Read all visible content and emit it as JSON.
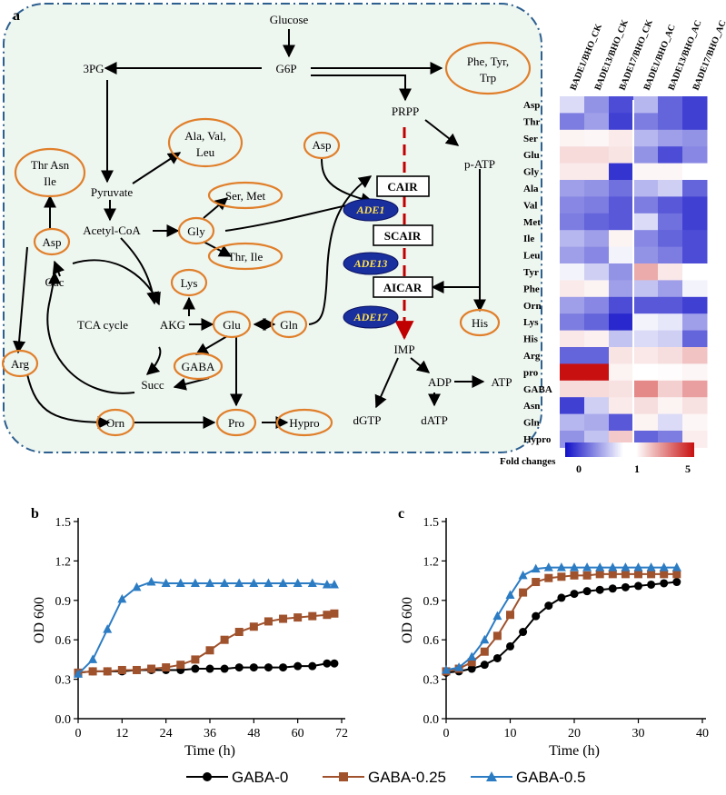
{
  "panels": {
    "a": "a",
    "b": "b",
    "c": "c"
  },
  "pathway": {
    "nodes": {
      "glucose": "Glucose",
      "g6p": "G6P",
      "pg3": "3PG",
      "phe_tyr_trp_1": "Phe, Tyr,",
      "phe_tyr_trp_2": "Trp",
      "prpp": "PRPP",
      "ala_val_leu_1": "Ala, Val,",
      "ala_val_leu_2": "Leu",
      "thr_asn_ile_1": "Thr Asn",
      "thr_asn_ile_2": "Ile",
      "pyruvate": "Pyruvate",
      "ser_met": "Ser, Met",
      "asp_top": "Asp",
      "p_atp": "p-ATP",
      "cair": "CAIR",
      "acetyl_coa": "Acetyl-CoA",
      "gly": "Gly",
      "thr_ile": "Thr, Ile",
      "ade1": "ADE1",
      "scair": "SCAIR",
      "asp_left": "Asp",
      "ade13": "ADE13",
      "lys": "Lys",
      "oac": "Oac",
      "aicar": "AICAR",
      "tca": "TCA cycle",
      "akg": "AKG",
      "glu": "Glu",
      "gln": "Gln",
      "ade17": "ADE17",
      "his": "His",
      "imp": "IMP",
      "arg": "Arg",
      "gaba": "GABA",
      "succ": "Succ",
      "adp": "ADP",
      "atp": "ATP",
      "orn": "Orn",
      "pro": "Pro",
      "hypro": "Hypro",
      "dgtp": "dGTP",
      "datp": "dATP"
    }
  },
  "heatmap": {
    "columns": [
      "BADE1/BHO_CK",
      "BADE13/BHO_CK",
      "BADE17/BHO_CK",
      "BADE1/BHO_AC",
      "BADE13/BHO_AC",
      "BADE17/BHO_AC"
    ],
    "rows": [
      "Asp",
      "Thr",
      "Ser",
      "Glu",
      "Gly",
      "Ala",
      "Val",
      "Met",
      "Ile",
      "Leu",
      "Tyr",
      "Phe",
      "Orn",
      "Lys",
      "His",
      "Arg",
      "pro",
      "GABA",
      "Asn",
      "Gln",
      "Hypro"
    ],
    "values": [
      [
        0.85,
        0.55,
        0.25,
        0.7,
        0.35,
        0.2
      ],
      [
        0.45,
        0.6,
        0.2,
        0.45,
        0.35,
        0.2
      ],
      [
        1.2,
        1.15,
        1.35,
        0.7,
        0.6,
        0.55
      ],
      [
        1.6,
        1.6,
        1.45,
        0.55,
        0.25,
        0.5
      ],
      [
        1.35,
        1.35,
        0.15,
        1.15,
        1.15,
        1.0
      ],
      [
        0.6,
        0.55,
        0.4,
        0.7,
        0.8,
        0.35
      ],
      [
        0.5,
        0.45,
        0.3,
        0.45,
        0.3,
        0.2
      ],
      [
        0.45,
        0.35,
        0.3,
        0.85,
        0.4,
        0.2
      ],
      [
        0.7,
        0.6,
        1.2,
        0.5,
        0.35,
        0.25
      ],
      [
        0.6,
        0.5,
        0.95,
        0.55,
        0.45,
        0.25
      ],
      [
        0.95,
        0.8,
        0.55,
        2.4,
        1.4,
        1.0
      ],
      [
        1.35,
        1.2,
        0.6,
        0.75,
        0.6,
        0.95
      ],
      [
        0.6,
        0.5,
        0.25,
        0.3,
        0.3,
        0.2
      ],
      [
        0.45,
        0.35,
        0.1,
        0.95,
        0.9,
        0.6
      ],
      [
        1.4,
        1.25,
        0.75,
        0.85,
        0.8,
        0.35
      ],
      [
        0.35,
        0.35,
        1.45,
        1.4,
        1.55,
        2.0
      ],
      [
        5.0,
        5.0,
        1.2,
        1.0,
        1.05,
        1.15
      ],
      [
        1.6,
        1.6,
        1.5,
        3.0,
        1.8,
        2.6
      ],
      [
        0.2,
        0.8,
        1.35,
        1.55,
        1.2,
        1.5
      ],
      [
        0.7,
        0.65,
        0.3,
        1.2,
        0.85,
        1.15
      ],
      [
        0.55,
        0.75,
        1.9,
        0.35,
        0.45,
        1.3
      ]
    ],
    "scale": {
      "label": "Fold changes",
      "ticks": [
        "0",
        "1",
        "5"
      ],
      "low_color": "#1010c8",
      "mid_color": "#ffffff",
      "high_color": "#c81010"
    }
  },
  "chart_data": [
    {
      "panel": "b",
      "type": "line",
      "xlabel": "Time (h)",
      "ylabel": "OD 600",
      "xlim": [
        0,
        72
      ],
      "ylim": [
        0,
        1.5
      ],
      "xticks": [
        "0",
        "12",
        "24",
        "36",
        "48",
        "60",
        "72"
      ],
      "yticks": [
        "0.0",
        "0.3",
        "0.6",
        "0.9",
        "1.2",
        "1.5"
      ],
      "series": [
        {
          "name": "GABA-0",
          "color": "#000000",
          "marker": "circle",
          "x": [
            0,
            4,
            8,
            12,
            16,
            20,
            24,
            28,
            32,
            36,
            40,
            44,
            48,
            52,
            56,
            60,
            64,
            68,
            70
          ],
          "y": [
            0.35,
            0.36,
            0.36,
            0.36,
            0.37,
            0.37,
            0.37,
            0.37,
            0.38,
            0.38,
            0.38,
            0.39,
            0.39,
            0.39,
            0.39,
            0.4,
            0.4,
            0.42,
            0.42
          ]
        },
        {
          "name": "GABA-0.25",
          "color": "#a0522d",
          "marker": "square",
          "x": [
            0,
            4,
            8,
            12,
            16,
            20,
            24,
            28,
            32,
            36,
            40,
            44,
            48,
            52,
            56,
            60,
            64,
            68,
            70
          ],
          "y": [
            0.35,
            0.36,
            0.36,
            0.37,
            0.37,
            0.38,
            0.39,
            0.41,
            0.45,
            0.52,
            0.6,
            0.66,
            0.7,
            0.74,
            0.76,
            0.77,
            0.78,
            0.79,
            0.8
          ]
        },
        {
          "name": "GABA-0.5",
          "color": "#2c7cc4",
          "marker": "triangle",
          "x": [
            0,
            4,
            8,
            12,
            16,
            20,
            24,
            28,
            32,
            36,
            40,
            44,
            48,
            52,
            56,
            60,
            64,
            68,
            70
          ],
          "y": [
            0.34,
            0.45,
            0.68,
            0.91,
            1.0,
            1.04,
            1.03,
            1.03,
            1.03,
            1.03,
            1.03,
            1.03,
            1.03,
            1.03,
            1.03,
            1.03,
            1.03,
            1.02,
            1.02
          ]
        }
      ]
    },
    {
      "panel": "c",
      "type": "line",
      "xlabel": "Time (h)",
      "ylabel": "OD 600",
      "xlim": [
        0,
        40
      ],
      "ylim": [
        0,
        1.5
      ],
      "xticks": [
        "0",
        "10",
        "20",
        "30",
        "40"
      ],
      "yticks": [
        "0.0",
        "0.3",
        "0.6",
        "0.9",
        "1.2",
        "1.5"
      ],
      "series": [
        {
          "name": "GABA-0",
          "color": "#000000",
          "marker": "circle",
          "x": [
            0,
            2,
            4,
            6,
            8,
            10,
            12,
            14,
            16,
            18,
            20,
            22,
            24,
            26,
            28,
            30,
            32,
            34,
            36
          ],
          "y": [
            0.35,
            0.36,
            0.38,
            0.41,
            0.46,
            0.55,
            0.66,
            0.78,
            0.86,
            0.92,
            0.95,
            0.97,
            0.98,
            0.99,
            1.0,
            1.01,
            1.02,
            1.03,
            1.04
          ]
        },
        {
          "name": "GABA-0.25",
          "color": "#a0522d",
          "marker": "square",
          "x": [
            0,
            2,
            4,
            6,
            8,
            10,
            12,
            14,
            16,
            18,
            20,
            22,
            24,
            26,
            28,
            30,
            32,
            34,
            36
          ],
          "y": [
            0.36,
            0.38,
            0.43,
            0.51,
            0.63,
            0.79,
            0.96,
            1.04,
            1.07,
            1.08,
            1.09,
            1.09,
            1.1,
            1.1,
            1.1,
            1.1,
            1.1,
            1.1,
            1.1
          ]
        },
        {
          "name": "GABA-0.5",
          "color": "#2c7cc4",
          "marker": "triangle",
          "x": [
            0,
            2,
            4,
            6,
            8,
            10,
            12,
            14,
            16,
            18,
            20,
            22,
            24,
            26,
            28,
            30,
            32,
            34,
            36
          ],
          "y": [
            0.37,
            0.39,
            0.47,
            0.6,
            0.78,
            0.94,
            1.09,
            1.14,
            1.15,
            1.15,
            1.15,
            1.15,
            1.15,
            1.15,
            1.15,
            1.15,
            1.15,
            1.15,
            1.15
          ]
        }
      ]
    }
  ],
  "legend": [
    "GABA-0",
    "GABA-0.25",
    "GABA-0.5"
  ]
}
